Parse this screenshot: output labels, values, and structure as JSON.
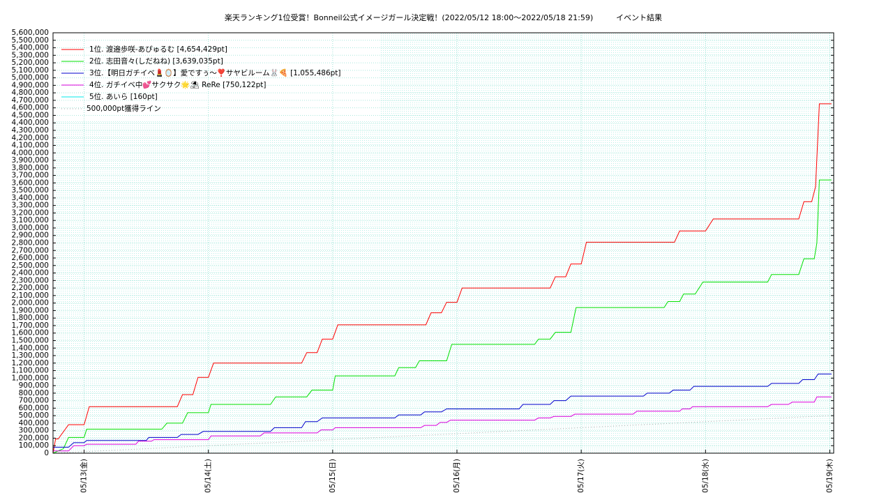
{
  "chart_data": {
    "type": "line",
    "title": "楽天ランキング1位受賞！Bonneil公式イメージガール決定戦！(2022/05/12 18:00～2022/05/18 21:59)",
    "subtitle": "イベント結果",
    "grid": true,
    "legend": "upper left",
    "xlim": [
      "2022-05-12T18:00",
      "2022-05-19T00:45"
    ],
    "xticks": [
      {
        "value": "2022-05-13T00:00",
        "label": "05/13(金)"
      },
      {
        "value": "2022-05-14T00:00",
        "label": "05/14(土)"
      },
      {
        "value": "2022-05-15T00:00",
        "label": "05/15(日)"
      },
      {
        "value": "2022-05-16T00:00",
        "label": "05/16(月)"
      },
      {
        "value": "2022-05-17T00:00",
        "label": "05/17(火)"
      },
      {
        "value": "2022-05-18T00:00",
        "label": "05/18(水)"
      },
      {
        "value": "2022-05-19T00:00",
        "label": "05/19(木)"
      }
    ],
    "ylim": [
      0,
      5600000
    ],
    "yticks": [
      0,
      {
        "value": 100000,
        "label": "100,000"
      },
      {
        "value": 200000,
        "label": "200,000"
      },
      {
        "value": 300000,
        "label": "300,000"
      },
      {
        "value": 400000,
        "label": "400,000"
      },
      {
        "value": 500000,
        "label": "500,000"
      },
      {
        "value": 600000,
        "label": "600,000"
      },
      {
        "value": 700000,
        "label": "700,000"
      },
      {
        "value": 800000,
        "label": "800,000"
      },
      {
        "value": 900000,
        "label": "900,000"
      },
      {
        "value": 1000000,
        "label": "1,000,000"
      },
      {
        "value": 1100000,
        "label": "1,100,000"
      },
      {
        "value": 1200000,
        "label": "1,200,000"
      },
      {
        "value": 1300000,
        "label": "1,300,000"
      },
      {
        "value": 1400000,
        "label": "1,400,000"
      },
      {
        "value": 1500000,
        "label": "1,500,000"
      },
      {
        "value": 1600000,
        "label": "1,600,000"
      },
      {
        "value": 1700000,
        "label": "1,700,000"
      },
      {
        "value": 1800000,
        "label": "1,800,000"
      },
      {
        "value": 1900000,
        "label": "1,900,000"
      },
      {
        "value": 2000000,
        "label": "2,000,000"
      },
      {
        "value": 2100000,
        "label": "2,100,000"
      },
      {
        "value": 2200000,
        "label": "2,200,000"
      },
      {
        "value": 2300000,
        "label": "2,300,000"
      },
      {
        "value": 2400000,
        "label": "2,400,000"
      },
      {
        "value": 2500000,
        "label": "2,500,000"
      },
      {
        "value": 2600000,
        "label": "2,600,000"
      },
      {
        "value": 2700000,
        "label": "2,700,000"
      },
      {
        "value": 2800000,
        "label": "2,800,000"
      },
      {
        "value": 2900000,
        "label": "2,900,000"
      },
      {
        "value": 3000000,
        "label": "3,000,000"
      },
      {
        "value": 3100000,
        "label": "3,100,000"
      },
      {
        "value": 3200000,
        "label": "3,200,000"
      },
      {
        "value": 3300000,
        "label": "3,300,000"
      },
      {
        "value": 3400000,
        "label": "3,400,000"
      },
      {
        "value": 3500000,
        "label": "3,500,000"
      },
      {
        "value": 3600000,
        "label": "3,600,000"
      },
      {
        "value": 3700000,
        "label": "3,700,000"
      },
      {
        "value": 3800000,
        "label": "3,800,000"
      },
      {
        "value": 3900000,
        "label": "3,900,000"
      },
      {
        "value": 4000000,
        "label": "4,000,000"
      },
      {
        "value": 4100000,
        "label": "4,100,000"
      },
      {
        "value": 4200000,
        "label": "4,200,000"
      },
      {
        "value": 4300000,
        "label": "4,300,000"
      },
      {
        "value": 4400000,
        "label": "4,400,000"
      },
      {
        "value": 4500000,
        "label": "4,500,000"
      },
      {
        "value": 4600000,
        "label": "4,600,000"
      },
      {
        "value": 4700000,
        "label": "4,700,000"
      },
      {
        "value": 4800000,
        "label": "4,800,000"
      },
      {
        "value": 4900000,
        "label": "4,900,000"
      },
      {
        "value": 5000000,
        "label": "5,000,000"
      },
      {
        "value": 5100000,
        "label": "5,100,000"
      },
      {
        "value": 5200000,
        "label": "5,200,000"
      },
      {
        "value": 5300000,
        "label": "5,300,000"
      },
      {
        "value": 5400000,
        "label": "5,400,000"
      },
      {
        "value": 5500000,
        "label": "5,500,000"
      },
      {
        "value": 5600000,
        "label": "5,600,000"
      }
    ],
    "series": [
      {
        "name": "1位. 渡邉歩咲-あぴゅるむ [4,654,429pt]",
        "color": "#ff0000",
        "x": [
          "2022-05-12T18:00",
          "2022-05-12T18:30",
          "2022-05-12T19:00",
          "2022-05-12T21:00",
          "2022-05-13T00:00",
          "2022-05-13T01:00",
          "2022-05-13T18:00",
          "2022-05-13T19:00",
          "2022-05-13T21:00",
          "2022-05-13T22:00",
          "2022-05-14T00:00",
          "2022-05-14T01:00",
          "2022-05-14T18:00",
          "2022-05-14T19:00",
          "2022-05-14T21:00",
          "2022-05-14T22:00",
          "2022-05-15T00:00",
          "2022-05-15T01:00",
          "2022-05-15T18:00",
          "2022-05-15T19:00",
          "2022-05-15T21:00",
          "2022-05-15T22:00",
          "2022-05-16T00:00",
          "2022-05-16T01:00",
          "2022-05-16T18:00",
          "2022-05-16T19:00",
          "2022-05-16T21:00",
          "2022-05-16T22:00",
          "2022-05-17T00:00",
          "2022-05-17T01:00",
          "2022-05-17T18:00",
          "2022-05-17T19:00",
          "2022-05-18T00:00",
          "2022-05-18T01:30",
          "2022-05-18T18:00",
          "2022-05-18T19:00",
          "2022-05-18T20:30",
          "2022-05-18T21:15",
          "2022-05-18T21:59",
          "2022-05-19T00:20"
        ],
        "values": [
          0,
          190000,
          190000,
          380000,
          380000,
          620000,
          620000,
          780000,
          780000,
          1010000,
          1010000,
          1200000,
          1200000,
          1340000,
          1340000,
          1520000,
          1520000,
          1710000,
          1710000,
          1870000,
          1870000,
          2010000,
          2010000,
          2200000,
          2200000,
          2350000,
          2350000,
          2520000,
          2520000,
          2810000,
          2810000,
          2960000,
          2960000,
          3120000,
          3120000,
          3350000,
          3350000,
          3550000,
          4654429,
          4654429
        ]
      },
      {
        "name": "2位. 志田音々(しだねね) [3,639,035pt]",
        "color": "#00e000",
        "x": [
          "2022-05-12T18:00",
          "2022-05-12T20:00",
          "2022-05-12T21:00",
          "2022-05-13T00:00",
          "2022-05-13T00:30",
          "2022-05-13T15:00",
          "2022-05-13T16:00",
          "2022-05-13T19:00",
          "2022-05-13T20:00",
          "2022-05-14T00:00",
          "2022-05-14T00:30",
          "2022-05-14T12:00",
          "2022-05-14T13:00",
          "2022-05-14T19:00",
          "2022-05-14T20:00",
          "2022-05-15T00:00",
          "2022-05-15T00:30",
          "2022-05-15T12:00",
          "2022-05-15T12:45",
          "2022-05-15T16:00",
          "2022-05-15T16:45",
          "2022-05-15T22:00",
          "2022-05-15T23:00",
          "2022-05-16T15:00",
          "2022-05-16T15:45",
          "2022-05-16T18:00",
          "2022-05-16T19:00",
          "2022-05-16T22:00",
          "2022-05-16T23:00",
          "2022-05-17T16:00",
          "2022-05-17T16:45",
          "2022-05-17T19:00",
          "2022-05-17T19:45",
          "2022-05-17T22:00",
          "2022-05-17T23:30",
          "2022-05-18T12:00",
          "2022-05-18T12:45",
          "2022-05-18T18:00",
          "2022-05-18T19:00",
          "2022-05-18T21:00",
          "2022-05-18T21:30",
          "2022-05-18T21:59",
          "2022-05-19T00:20"
        ],
        "values": [
          0,
          60000,
          210000,
          210000,
          320000,
          320000,
          400000,
          400000,
          540000,
          540000,
          650000,
          650000,
          750000,
          750000,
          840000,
          840000,
          1030000,
          1030000,
          1140000,
          1140000,
          1230000,
          1230000,
          1450000,
          1450000,
          1520000,
          1520000,
          1610000,
          1610000,
          1940000,
          1940000,
          2020000,
          2020000,
          2120000,
          2120000,
          2280000,
          2280000,
          2380000,
          2380000,
          2590000,
          2590000,
          2800000,
          3639035,
          3639035
        ]
      },
      {
        "name": "3位.【明日ガチイベ💄🪞】愛ですぅ〜❣️サヤビルーム🐰🍕 [1,055,486pt]",
        "color": "#0000cc",
        "x": [
          "2022-05-12T18:00",
          "2022-05-12T21:00",
          "2022-05-12T22:00",
          "2022-05-13T00:00",
          "2022-05-13T00:30",
          "2022-05-13T12:00",
          "2022-05-13T12:30",
          "2022-05-13T18:00",
          "2022-05-13T18:45",
          "2022-05-13T22:00",
          "2022-05-13T23:00",
          "2022-05-14T12:00",
          "2022-05-14T12:45",
          "2022-05-14T18:00",
          "2022-05-14T18:45",
          "2022-05-14T21:00",
          "2022-05-14T22:00",
          "2022-05-15T12:00",
          "2022-05-15T12:45",
          "2022-05-15T17:00",
          "2022-05-15T17:45",
          "2022-05-15T21:00",
          "2022-05-15T22:00",
          "2022-05-16T12:00",
          "2022-05-16T12:45",
          "2022-05-16T18:00",
          "2022-05-16T18:45",
          "2022-05-16T21:00",
          "2022-05-16T22:00",
          "2022-05-17T12:00",
          "2022-05-17T12:45",
          "2022-05-17T17:00",
          "2022-05-17T17:45",
          "2022-05-17T21:00",
          "2022-05-17T21:45",
          "2022-05-18T12:00",
          "2022-05-18T12:45",
          "2022-05-18T18:00",
          "2022-05-18T18:45",
          "2022-05-18T21:00",
          "2022-05-18T21:45",
          "2022-05-19T00:20"
        ],
        "values": [
          80000,
          80000,
          140000,
          140000,
          170000,
          170000,
          210000,
          210000,
          250000,
          250000,
          290000,
          290000,
          340000,
          340000,
          420000,
          420000,
          470000,
          470000,
          510000,
          510000,
          550000,
          550000,
          590000,
          590000,
          650000,
          650000,
          700000,
          700000,
          760000,
          760000,
          800000,
          800000,
          840000,
          840000,
          890000,
          890000,
          930000,
          930000,
          980000,
          980000,
          1055486,
          1055486
        ]
      },
      {
        "name": "4位. ガチイベ中💕サクサク🌟⛱ ReRe [750,122pt]",
        "color": "#dd00dd",
        "x": [
          "2022-05-12T18:00",
          "2022-05-12T21:00",
          "2022-05-12T22:00",
          "2022-05-13T00:00",
          "2022-05-13T00:30",
          "2022-05-13T10:00",
          "2022-05-13T10:30",
          "2022-05-13T13:00",
          "2022-05-13T13:30",
          "2022-05-14T00:00",
          "2022-05-14T00:30",
          "2022-05-14T10:00",
          "2022-05-14T10:45",
          "2022-05-14T21:00",
          "2022-05-14T21:45",
          "2022-05-15T00:00",
          "2022-05-15T00:30",
          "2022-05-15T17:00",
          "2022-05-15T17:45",
          "2022-05-15T20:00",
          "2022-05-15T20:45",
          "2022-05-15T22:00",
          "2022-05-15T22:45",
          "2022-05-16T15:00",
          "2022-05-16T15:45",
          "2022-05-16T18:00",
          "2022-05-16T18:45",
          "2022-05-16T22:00",
          "2022-05-16T22:45",
          "2022-05-17T10:00",
          "2022-05-17T10:45",
          "2022-05-17T19:00",
          "2022-05-17T19:30",
          "2022-05-17T21:00",
          "2022-05-17T21:30",
          "2022-05-18T12:00",
          "2022-05-18T12:45",
          "2022-05-18T16:00",
          "2022-05-18T16:45",
          "2022-05-18T21:00",
          "2022-05-18T21:30",
          "2022-05-19T00:20"
        ],
        "values": [
          30000,
          30000,
          100000,
          100000,
          120000,
          120000,
          160000,
          160000,
          180000,
          180000,
          230000,
          230000,
          270000,
          270000,
          310000,
          310000,
          340000,
          340000,
          370000,
          370000,
          410000,
          410000,
          440000,
          440000,
          470000,
          470000,
          490000,
          490000,
          520000,
          520000,
          560000,
          560000,
          590000,
          590000,
          620000,
          620000,
          650000,
          650000,
          680000,
          680000,
          750122,
          750122
        ]
      },
      {
        "name": "5位. あいら [160pt]",
        "color": "#00e8e8",
        "x": [
          "2022-05-12T18:00",
          "2022-05-19T00:20"
        ],
        "values": [
          0,
          160
        ]
      },
      {
        "name": "500,000pt獲得ライン",
        "color": "#aaaaaa",
        "dash": "dotted",
        "x": [
          "2022-05-12T18:00",
          "2022-05-19T00:00"
        ],
        "values": [
          0,
          500000
        ]
      }
    ]
  }
}
